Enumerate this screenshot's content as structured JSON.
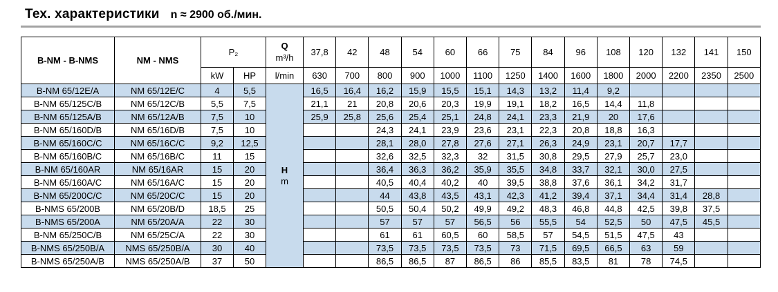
{
  "title": {
    "main": "Тех. характеристики",
    "speed": "n ≈ 2900 об./мин."
  },
  "table": {
    "col1_header": "B-NM - B-NMS",
    "col2_header": "NM - NMS",
    "p2_header": "P₂",
    "kw_header": "kW",
    "hp_header": "HP",
    "q_symbol": "Q",
    "q_unit": "m³/h",
    "lmin_header": "l/min",
    "h_symbol": "H",
    "h_unit": "m",
    "flow_m3h": [
      "37,8",
      "42",
      "48",
      "54",
      "60",
      "66",
      "75",
      "84",
      "96",
      "108",
      "120",
      "132",
      "141",
      "150"
    ],
    "flow_lmin": [
      "630",
      "700",
      "800",
      "900",
      "1000",
      "1100",
      "1250",
      "1400",
      "1600",
      "1800",
      "2000",
      "2200",
      "2350",
      "2500"
    ],
    "rows": [
      {
        "bnm": "B-NM 65/12E/A",
        "nm": "NM 65/12E/C",
        "kw": "4",
        "hp": "5,5",
        "values": [
          "16,5",
          "16,4",
          "16,2",
          "15,9",
          "15,5",
          "15,1",
          "14,3",
          "13,2",
          "11,4",
          "9,2",
          "",
          "",
          "",
          ""
        ]
      },
      {
        "bnm": "B-NM 65/125C/B",
        "nm": "NM 65/12C/B",
        "kw": "5,5",
        "hp": "7,5",
        "values": [
          "21,1",
          "21",
          "20,8",
          "20,6",
          "20,3",
          "19,9",
          "19,1",
          "18,2",
          "16,5",
          "14,4",
          "11,8",
          "",
          "",
          ""
        ]
      },
      {
        "bnm": "B-NM 65/125A/B",
        "nm": "NM 65/12A/B",
        "kw": "7,5",
        "hp": "10",
        "values": [
          "25,9",
          "25,8",
          "25,6",
          "25,4",
          "25,1",
          "24,8",
          "24,1",
          "23,3",
          "21,9",
          "20",
          "17,6",
          "",
          "",
          ""
        ]
      },
      {
        "bnm": "B-NM 65/160D/B",
        "nm": "NM 65/16D/B",
        "kw": "7,5",
        "hp": "10",
        "values": [
          "",
          "",
          "24,3",
          "24,1",
          "23,9",
          "23,6",
          "23,1",
          "22,3",
          "20,8",
          "18,8",
          "16,3",
          "",
          "",
          ""
        ]
      },
      {
        "bnm": "B-NM 65/160C/C",
        "nm": "NM 65/16C/C",
        "kw": "9,2",
        "hp": "12,5",
        "values": [
          "",
          "",
          "28,1",
          "28,0",
          "27,8",
          "27,6",
          "27,1",
          "26,3",
          "24,9",
          "23,1",
          "20,7",
          "17,7",
          "",
          ""
        ]
      },
      {
        "bnm": "B-NM 65/160B/C",
        "nm": "NM 65/16B/C",
        "kw": "11",
        "hp": "15",
        "values": [
          "",
          "",
          "32,6",
          "32,5",
          "32,3",
          "32",
          "31,5",
          "30,8",
          "29,5",
          "27,9",
          "25,7",
          "23,0",
          "",
          ""
        ]
      },
      {
        "bnm": "B-NM 65/160AR",
        "nm": "NM 65/16AR",
        "kw": "15",
        "hp": "20",
        "values": [
          "",
          "",
          "36,4",
          "36,3",
          "36,2",
          "35,9",
          "35,5",
          "34,8",
          "33,7",
          "32,1",
          "30,0",
          "27,5",
          "",
          ""
        ]
      },
      {
        "bnm": "B-NM 65/160A/C",
        "nm": "NM 65/16A/C",
        "kw": "15",
        "hp": "20",
        "values": [
          "",
          "",
          "40,5",
          "40,4",
          "40,2",
          "40",
          "39,5",
          "38,8",
          "37,6",
          "36,1",
          "34,2",
          "31,7",
          "",
          ""
        ]
      },
      {
        "bnm": "B-NM 65/200C/C",
        "nm": "NM 65/20C/C",
        "kw": "15",
        "hp": "20",
        "values": [
          "",
          "",
          "44",
          "43,8",
          "43,5",
          "43,1",
          "42,3",
          "41,2",
          "39,4",
          "37,1",
          "34,4",
          "31,4",
          "28,8",
          ""
        ]
      },
      {
        "bnm": "B-NMS 65/200B",
        "nm": "NM 65/20B/D",
        "kw": "18,5",
        "hp": "25",
        "values": [
          "",
          "",
          "50,5",
          "50,4",
          "50,2",
          "49,9",
          "49,2",
          "48,3",
          "46,8",
          "44,8",
          "42,5",
          "39,8",
          "37,5",
          ""
        ]
      },
      {
        "bnm": "B-NMS 65/200A",
        "nm": "NM 65/20A/A",
        "kw": "22",
        "hp": "30",
        "values": [
          "",
          "",
          "57",
          "57",
          "57",
          "56,5",
          "56",
          "55,5",
          "54",
          "52,5",
          "50",
          "47,5",
          "45,5",
          ""
        ]
      },
      {
        "bnm": "B-NM 65/250C/B",
        "nm": "NM 65/25C/A",
        "kw": "22",
        "hp": "30",
        "values": [
          "",
          "",
          "61",
          "61",
          "60,5",
          "60",
          "58,5",
          "57",
          "54,5",
          "51,5",
          "47,5",
          "43",
          "",
          ""
        ]
      },
      {
        "bnm": "B-NMS 65/250B/A",
        "nm": "NMS 65/250B/A",
        "kw": "30",
        "hp": "40",
        "values": [
          "",
          "",
          "73,5",
          "73,5",
          "73,5",
          "73,5",
          "73",
          "71,5",
          "69,5",
          "66,5",
          "63",
          "59",
          "",
          ""
        ]
      },
      {
        "bnm": "B-NMS 65/250A/B",
        "nm": "NMS 65/250A/B",
        "kw": "37",
        "hp": "50",
        "values": [
          "",
          "",
          "86,5",
          "86,5",
          "87",
          "86,5",
          "86",
          "85,5",
          "83,5",
          "81",
          "78",
          "74,5",
          "",
          ""
        ]
      }
    ]
  },
  "colors": {
    "stripe_blue": "#c8dbed",
    "rule_grey": "#a3a3a3",
    "border_black": "#000000"
  }
}
